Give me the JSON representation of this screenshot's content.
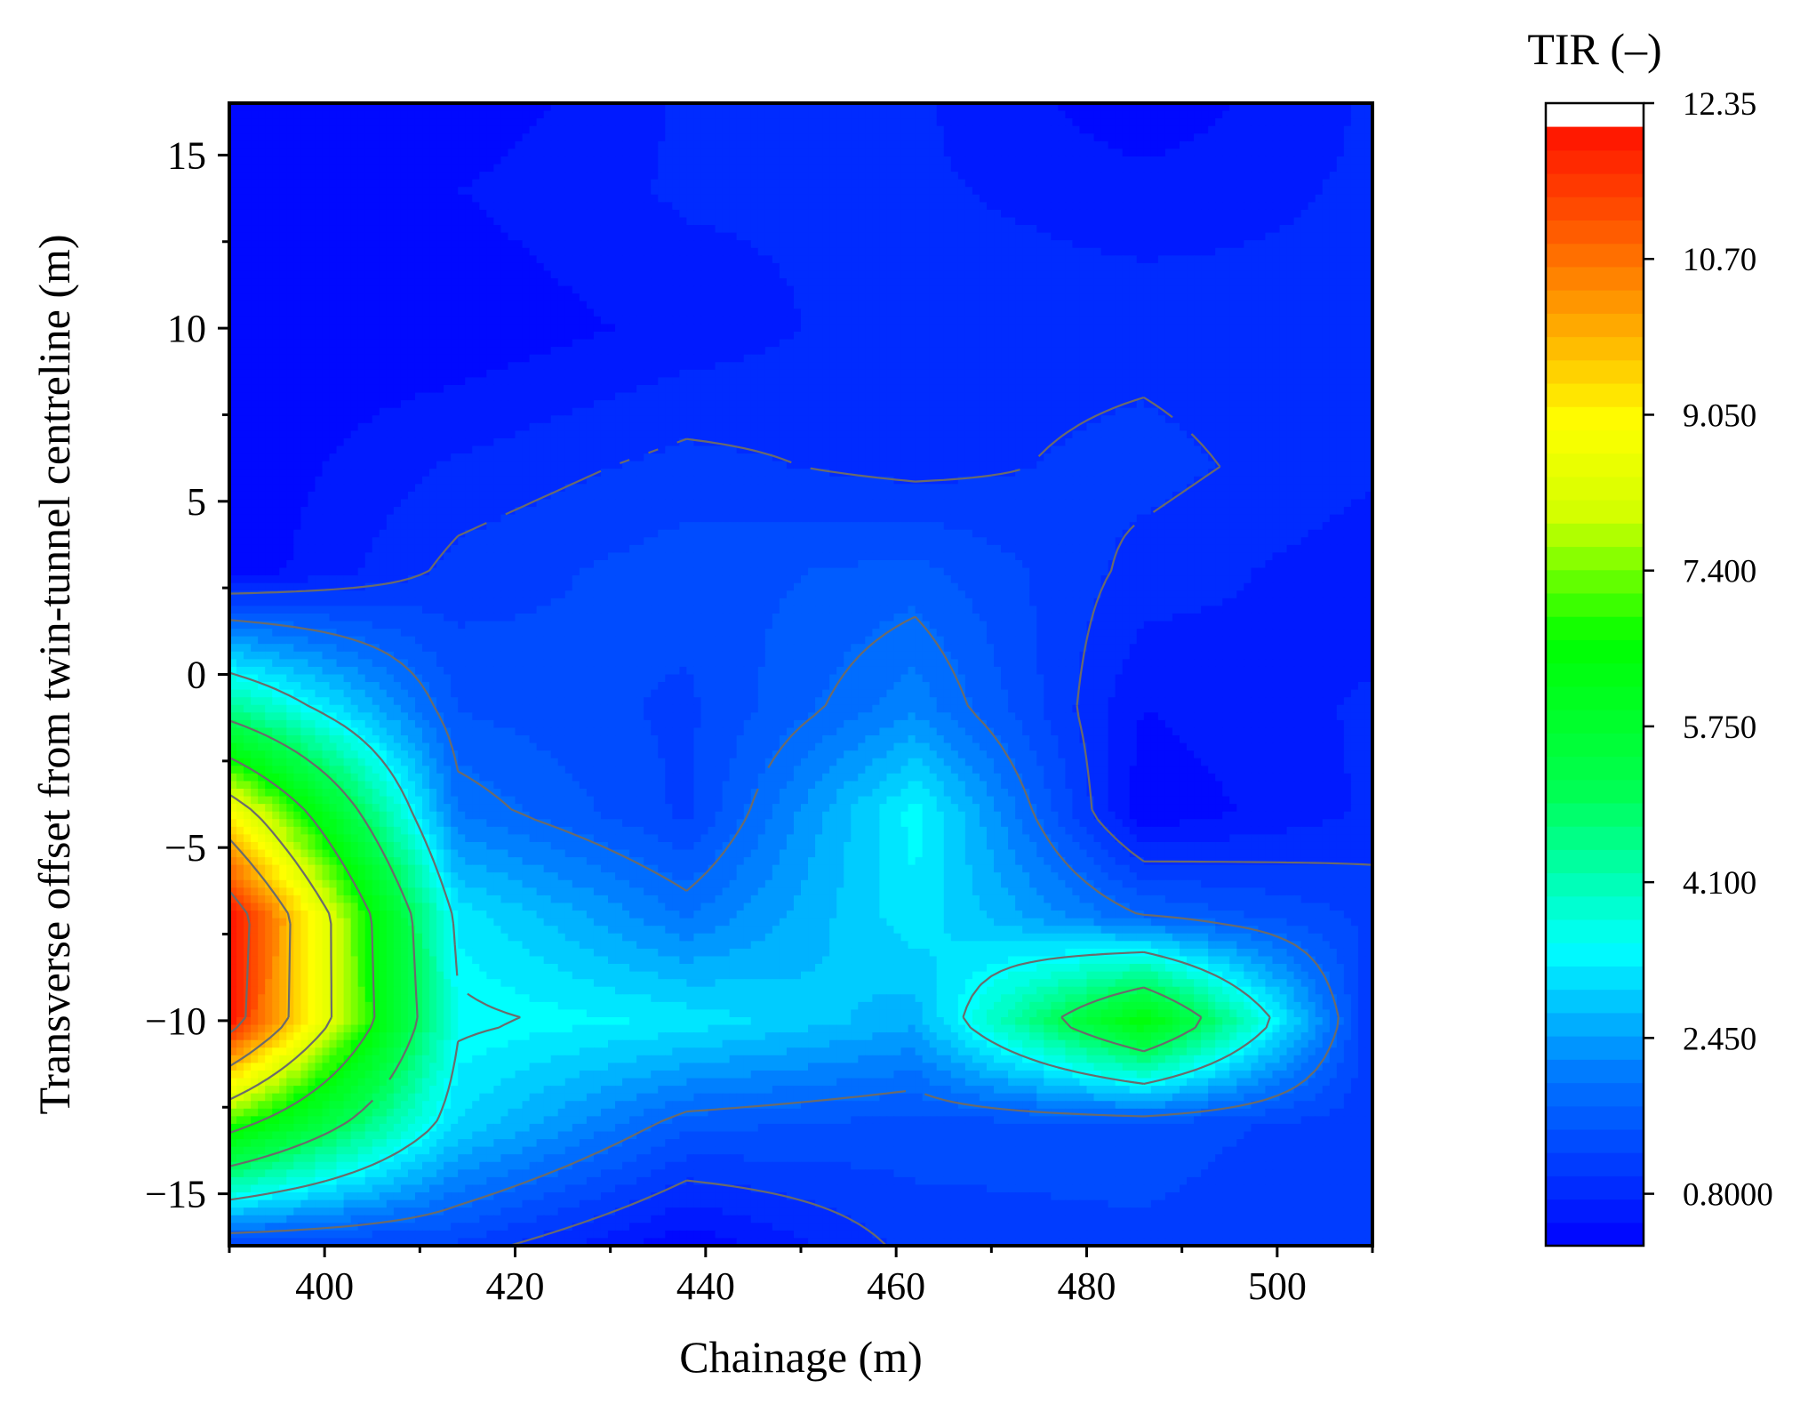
{
  "chart_data": {
    "type": "contour",
    "xlabel": "Chainage (m)",
    "ylabel": "Transverse offset from twin-tunnel centreline (m)",
    "xlim": [
      390,
      510
    ],
    "ylim": [
      -16.5,
      16.5
    ],
    "xticks": [
      {
        "value": 400,
        "label": "400"
      },
      {
        "value": 420,
        "label": "420"
      },
      {
        "value": 440,
        "label": "440"
      },
      {
        "value": 460,
        "label": "460"
      },
      {
        "value": 480,
        "label": "480"
      },
      {
        "value": 500,
        "label": "500"
      }
    ],
    "yticks": [
      {
        "value": 15,
        "label": "15"
      },
      {
        "value": 10,
        "label": "10"
      },
      {
        "value": 5,
        "label": "5"
      },
      {
        "value": 0,
        "label": "0"
      },
      {
        "value": -5,
        "label": "−5"
      },
      {
        "value": -10,
        "label": "−10"
      },
      {
        "value": -15,
        "label": "−15"
      }
    ],
    "x": [
      390,
      414,
      438,
      462,
      486,
      510
    ],
    "y": [
      16.5,
      14,
      10,
      6,
      3,
      -1,
      -4,
      -7,
      -10,
      -13,
      -16.5
    ],
    "z": [
      [
        0.3,
        0.3,
        0.8,
        0.8,
        0.3,
        0.8
      ],
      [
        0.3,
        0.5,
        0.8,
        0.8,
        0.6,
        0.8
      ],
      [
        0.3,
        0.3,
        0.6,
        0.9,
        0.9,
        0.8
      ],
      [
        0.3,
        0.8,
        1.1,
        0.9,
        1.1,
        0.8
      ],
      [
        0.3,
        1.1,
        1.4,
        1.6,
        0.9,
        0.6
      ],
      [
        4.5,
        1.5,
        1.2,
        2.2,
        0.5,
        0.8
      ],
      [
        9.0,
        2.0,
        1.2,
        3.4,
        0.3,
        0.8
      ],
      [
        12.2,
        3.2,
        2.0,
        3.2,
        1.8,
        1.2
      ],
      [
        12.0,
        3.5,
        3.2,
        2.6,
        6.5,
        1.0
      ],
      [
        7.0,
        3.0,
        1.6,
        1.4,
        1.4,
        1.1
      ],
      [
        1.2,
        1.2,
        0.3,
        1.1,
        1.2,
        1.0
      ]
    ],
    "z_range": [
      0.25,
      12.35
    ],
    "contour_lines": [
      1.0,
      1.8,
      3.4,
      5.0,
      6.6,
      8.2,
      9.8,
      11.4
    ],
    "colorbar": {
      "title": "TIR (–)",
      "ticks": [
        {
          "value": 12.35,
          "label": "12.35"
        },
        {
          "value": 10.7,
          "label": "10.70"
        },
        {
          "value": 9.05,
          "label": "9.050"
        },
        {
          "value": 7.4,
          "label": "7.400"
        },
        {
          "value": 5.75,
          "label": "5.750"
        },
        {
          "value": 4.1,
          "label": "4.100"
        },
        {
          "value": 2.45,
          "label": "2.450"
        },
        {
          "value": 0.8,
          "label": "0.8000"
        }
      ]
    }
  }
}
